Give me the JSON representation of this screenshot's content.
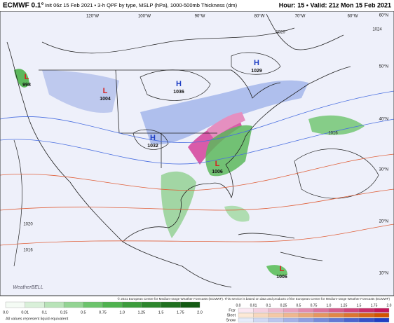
{
  "header": {
    "model": "ECMWF 0.1°",
    "description": "Init 06z 15 Feb 2021 • 3-h QPF by type, MSLP (hPa), 1000-500mb Thickness (dm)",
    "valid": "Hour: 15 • Valid: 21z Mon 15 Feb 2021"
  },
  "map": {
    "pressure_centers": [
      {
        "kind": "L",
        "value": "998"
      },
      {
        "kind": "L",
        "value": "1004"
      },
      {
        "kind": "H",
        "value": "1036"
      },
      {
        "kind": "H",
        "value": "1032"
      },
      {
        "kind": "H",
        "value": "1029"
      },
      {
        "kind": "L",
        "value": "1006"
      },
      {
        "kind": "L",
        "value": "1006"
      }
    ],
    "isobar_labels": [
      "1020",
      "1016",
      "1020",
      "1016",
      "1024"
    ],
    "latitude_labels": [
      "60°N",
      "50°N",
      "40°N",
      "30°N",
      "20°N",
      "10°N"
    ],
    "longitude_labels": [
      "120°W",
      "100°W",
      "90°W",
      "80°W",
      "70°W",
      "60°W"
    ]
  },
  "legend": {
    "rain_scale": [
      "0.0",
      "0.01",
      "0.1",
      "0.25",
      "0.5",
      "0.75",
      "1.0",
      "1.25",
      "1.5",
      "1.75",
      "2.0"
    ],
    "note": "All values represent liquid equivalent",
    "types": [
      "Frzr",
      "Sleet",
      "Snow"
    ],
    "mixed_scale": [
      "0.0",
      "0.01",
      "0.1",
      "0.25",
      "0.5",
      "0.75",
      "1.0",
      "1.25",
      "1.5",
      "1.75",
      "2.0"
    ]
  },
  "credit": "© 2021 European Centre for Medium-range Weather Forecasts (ECMWF). This service is based on data and products of the European Centre for Medium-range Weather Forecasts (ECMWF)",
  "logo": "WeatherBELL"
}
